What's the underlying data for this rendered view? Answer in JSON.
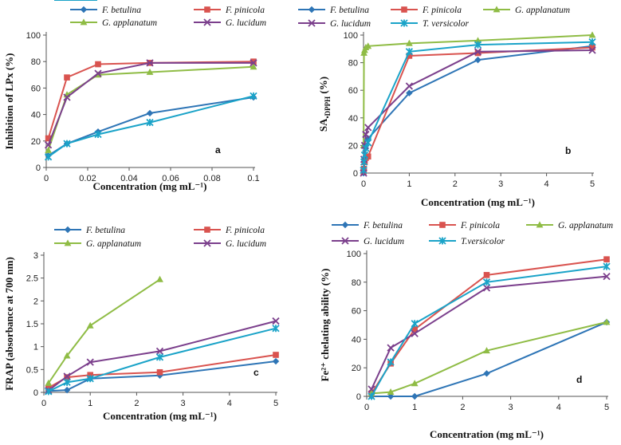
{
  "figure": {
    "colors": {
      "F. betulina": "#2e75b6",
      "F. pinicola": "#d9534f",
      "G. applanatum": "#8fbc45",
      "G. lucidum": "#7b3f8c",
      "T. versicolor": "#1aa3c8",
      "T.versicolor": "#1aa3c8"
    },
    "markers": {
      "F. betulina": "diamond",
      "F. pinicola": "square",
      "G. applanatum": "triangle",
      "G. lucidum": "x",
      "T. versicolor": "star",
      "T.versicolor": "star"
    }
  },
  "chart_data": [
    {
      "id": "a",
      "type": "line",
      "panel_label": "a",
      "xlabel": "Concentration (mg mL⁻¹)",
      "ylabel": "Inhibition of LPx (%)",
      "ylabel_sub": "",
      "xlim": [
        0,
        0.1
      ],
      "ylim": [
        0,
        100
      ],
      "xticks": [
        0,
        0.02,
        0.04,
        0.06,
        0.08,
        0.1
      ],
      "xtick_labels": [
        "0",
        "0.02",
        "0.04",
        "0.06",
        "0.08",
        "0.1"
      ],
      "yticks": [
        0,
        20,
        40,
        60,
        80,
        100
      ],
      "ytick_labels": [
        "0",
        "20",
        "40",
        "60",
        "80",
        "100"
      ],
      "legend": [
        "F. betulina",
        "F. pinicola",
        "G. applanatum",
        "G. lucidum",
        "T. versicolor"
      ],
      "legend_cols": 2,
      "x": [
        0.001,
        0.01,
        0.025,
        0.05,
        0.1
      ],
      "series": [
        {
          "name": "F. betulina",
          "values": [
            9,
            18,
            27,
            41,
            53
          ]
        },
        {
          "name": "F. pinicola",
          "values": [
            22,
            68,
            78,
            79,
            80
          ]
        },
        {
          "name": "G. applanatum",
          "values": [
            13,
            55,
            70,
            72,
            76
          ]
        },
        {
          "name": "G. lucidum",
          "values": [
            17,
            53,
            71,
            79,
            79
          ]
        },
        {
          "name": "T. versicolor",
          "values": [
            8,
            18,
            25,
            34,
            54
          ]
        }
      ]
    },
    {
      "id": "b",
      "type": "line",
      "panel_label": "b",
      "xlabel": "Concentration (mg mL⁻¹)",
      "ylabel": "SA",
      "ylabel_sub": "•DPPH",
      "ylabel_tail": " (%)",
      "xlim": [
        0,
        5
      ],
      "ylim": [
        0,
        100
      ],
      "xticks": [
        0,
        1,
        2,
        3,
        4,
        5
      ],
      "xtick_labels": [
        "0",
        "1",
        "2",
        "3",
        "4",
        "5"
      ],
      "yticks": [
        0,
        20,
        40,
        60,
        80,
        100
      ],
      "ytick_labels": [
        "0",
        "20",
        "40",
        "60",
        "80",
        "100"
      ],
      "legend": [
        "F. betulina",
        "F. pinicola",
        "G. applanatum",
        "G. lucidum",
        "T. versicolor"
      ],
      "legend_cols": 3,
      "x": [
        0.001,
        0.01,
        0.025,
        0.05,
        0.1,
        1,
        2.5,
        5
      ],
      "series": [
        {
          "name": "F. betulina",
          "values": [
            0,
            2,
            10,
            18,
            25,
            58,
            82,
            92
          ]
        },
        {
          "name": "F. pinicola",
          "values": [
            1,
            3,
            8,
            11,
            12,
            85,
            87,
            91
          ]
        },
        {
          "name": "G. applanatum",
          "values": [
            20,
            87,
            89,
            91,
            92,
            94,
            96,
            100
          ]
        },
        {
          "name": "G. lucidum",
          "values": [
            0,
            10,
            20,
            28,
            33,
            63,
            88,
            89
          ]
        },
        {
          "name": "T. versicolor",
          "values": [
            2,
            8,
            13,
            18,
            22,
            88,
            93,
            95
          ]
        }
      ]
    },
    {
      "id": "c",
      "type": "line",
      "panel_label": "c",
      "xlabel": "Concentration (mg mL⁻¹)",
      "ylabel": "FRAP (absorbance at 700 nm)",
      "ylabel_sub": "",
      "xlim": [
        0,
        5
      ],
      "ylim": [
        0,
        3
      ],
      "xticks": [
        0,
        1,
        2,
        3,
        4,
        5
      ],
      "xtick_labels": [
        "0",
        "1",
        "2",
        "3",
        "4",
        "5"
      ],
      "yticks": [
        0,
        0.5,
        1,
        1.5,
        2,
        2.5,
        3
      ],
      "ytick_labels": [
        "0",
        "0.5",
        "1",
        "1.5",
        "2",
        "2.5",
        "3"
      ],
      "legend": [
        "F. betulina",
        "F. pinicola",
        "G. applanatum",
        "G. lucidum",
        "T. versicolor"
      ],
      "legend_cols": 2,
      "x": [
        0.1,
        0.5,
        1,
        2.5,
        5
      ],
      "series": [
        {
          "name": "F. betulina",
          "values": [
            0.03,
            0.05,
            0.3,
            0.37,
            0.68
          ]
        },
        {
          "name": "F. pinicola",
          "values": [
            0.1,
            0.33,
            0.38,
            0.44,
            0.82
          ]
        },
        {
          "name": "G. applanatum",
          "values": [
            0.2,
            0.8,
            1.46,
            2.47,
            null
          ]
        },
        {
          "name": "G. lucidum",
          "values": [
            0.04,
            0.35,
            0.66,
            0.9,
            1.56
          ]
        },
        {
          "name": "T. versicolor",
          "values": [
            0.02,
            0.22,
            0.3,
            0.77,
            1.4
          ]
        }
      ]
    },
    {
      "id": "d",
      "type": "line",
      "panel_label": "d",
      "xlabel": "Concentration (mg mL⁻¹)",
      "ylabel": "Fe²⁺ chelating ability (%)",
      "ylabel_sub": "",
      "xlim": [
        0,
        5
      ],
      "ylim": [
        0,
        100
      ],
      "xticks": [
        0,
        1,
        2,
        3,
        4,
        5
      ],
      "xtick_labels": [
        "0",
        "1",
        "2",
        "3",
        "4",
        "5"
      ],
      "yticks": [
        0,
        20,
        40,
        60,
        80,
        100
      ],
      "ytick_labels": [
        "0",
        "20",
        "40",
        "60",
        "80",
        "100"
      ],
      "legend": [
        "F. betulina",
        "F. pinicola",
        "G. applanatum",
        "G. lucidum",
        "T.versicolor"
      ],
      "legend_cols": 3,
      "x": [
        0.1,
        0.5,
        1,
        2.5,
        5
      ],
      "series": [
        {
          "name": "F. betulina",
          "values": [
            0,
            0,
            0,
            16,
            52
          ]
        },
        {
          "name": "F. pinicola",
          "values": [
            2,
            23,
            47,
            85,
            96
          ]
        },
        {
          "name": "G. applanatum",
          "values": [
            2,
            3,
            9,
            32,
            52
          ]
        },
        {
          "name": "G. lucidum",
          "values": [
            5,
            34,
            44,
            76,
            84
          ]
        },
        {
          "name": "T.versicolor",
          "values": [
            0,
            24,
            51,
            80,
            91
          ]
        }
      ]
    }
  ]
}
